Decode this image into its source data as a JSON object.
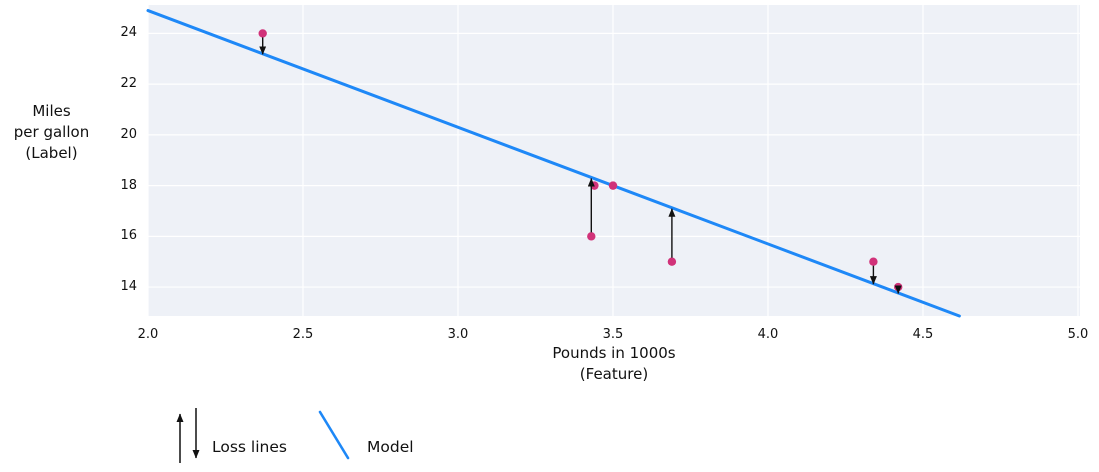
{
  "legend": {
    "loss_label": "Loss lines",
    "model_label": "Model"
  },
  "chart_data": {
    "type": "scatter",
    "title": "",
    "xlabel": "Pounds in 1000s\n(Feature)",
    "ylabel": "Miles\nper gallon\n(Label)",
    "xlim": [
      2.0,
      5.0
    ],
    "ylim": [
      12.86,
      25.12
    ],
    "xticks": [
      "2.0",
      "2.5",
      "3.0",
      "3.5",
      "4.0",
      "4.5",
      "5.0"
    ],
    "yticks": [
      "14",
      "16",
      "18",
      "20",
      "22",
      "24"
    ],
    "grid": true,
    "legend_position": "bottom-left",
    "points": [
      {
        "x": 2.37,
        "y": 24,
        "loss_arrow": "down"
      },
      {
        "x": 3.43,
        "y": 16,
        "loss_arrow": "up"
      },
      {
        "x": 3.44,
        "y": 18,
        "loss_arrow": null
      },
      {
        "x": 3.5,
        "y": 18,
        "loss_arrow": null
      },
      {
        "x": 3.69,
        "y": 15,
        "loss_arrow": "up"
      },
      {
        "x": 4.34,
        "y": 15,
        "loss_arrow": "down"
      },
      {
        "x": 4.42,
        "y": 14,
        "loss_arrow": "down"
      }
    ],
    "model_line": {
      "slope": -4.6,
      "intercept": 34.1
    },
    "colors": {
      "point": "#d13279",
      "model": "#1e88f7",
      "arrow": "#111111",
      "plot_bg": "#eef1f7",
      "grid": "#ffffff"
    }
  }
}
